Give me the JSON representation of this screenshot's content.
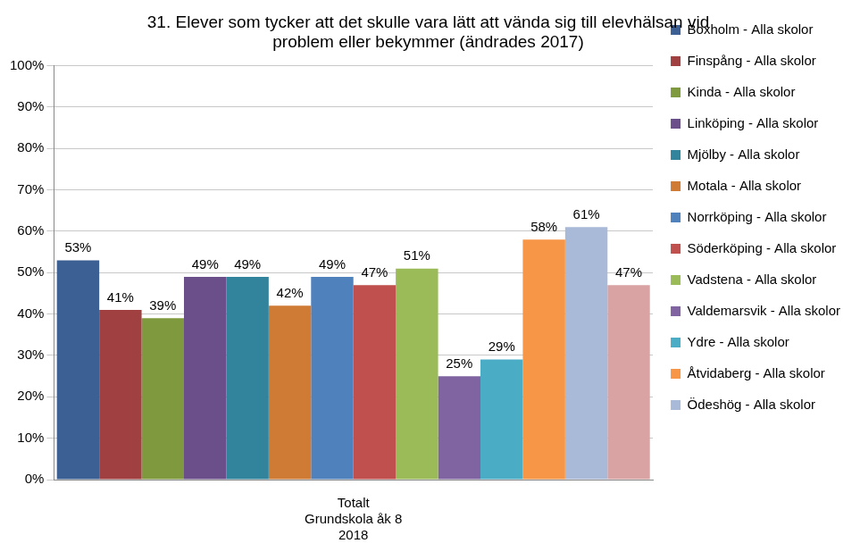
{
  "chart_data": {
    "type": "bar",
    "title": [
      "31. Elever som tycker att det skulle vara lätt att vända sig till elevhälsan vid",
      "problem eller bekymmer (ändrades 2017)"
    ],
    "categories": [
      [
        "Totalt",
        "Grundskola åk 8",
        "2018"
      ]
    ],
    "series": [
      {
        "name": "Boxholm - Alla skolor",
        "color": "#3c5f94",
        "values": [
          53
        ],
        "value_labels": [
          "53%"
        ]
      },
      {
        "name": "Finspång - Alla skolor",
        "color": "#a04040",
        "values": [
          41
        ],
        "value_labels": [
          "41%"
        ]
      },
      {
        "name": "Kinda - Alla skolor",
        "color": "#7f9a3e",
        "values": [
          39
        ],
        "value_labels": [
          "39%"
        ]
      },
      {
        "name": "Linköping - Alla skolor",
        "color": "#6a4f8a",
        "values": [
          49
        ],
        "value_labels": [
          "49%"
        ]
      },
      {
        "name": "Mjölby - Alla skolor",
        "color": "#31849b",
        "values": [
          49
        ],
        "value_labels": [
          "49%"
        ]
      },
      {
        "name": "Motala - Alla skolor",
        "color": "#d07b35",
        "values": [
          42
        ],
        "value_labels": [
          "42%"
        ]
      },
      {
        "name": "Norrköping - Alla skolor",
        "color": "#4f81bd",
        "values": [
          49
        ],
        "value_labels": [
          "49%"
        ]
      },
      {
        "name": "Söderköping - Alla skolor",
        "color": "#c0504d",
        "values": [
          47
        ],
        "value_labels": [
          "47%"
        ]
      },
      {
        "name": "Vadstena - Alla skolor",
        "color": "#9bbb59",
        "values": [
          51
        ],
        "value_labels": [
          "51%"
        ]
      },
      {
        "name": "Valdemarsvik - Alla skolor",
        "color": "#8064a2",
        "values": [
          25
        ],
        "value_labels": [
          "25%"
        ]
      },
      {
        "name": "Ydre - Alla skolor",
        "color": "#4bacc6",
        "values": [
          29
        ],
        "value_labels": [
          "29%"
        ]
      },
      {
        "name": "Åtvidaberg - Alla skolor",
        "color": "#f79646",
        "values": [
          58
        ],
        "value_labels": [
          "58%"
        ]
      },
      {
        "name": "Ödeshög - Alla skolor",
        "color": "#a9bad9",
        "values": [
          61
        ],
        "value_labels": [
          "61%"
        ]
      },
      {
        "name": null,
        "color": "#d9a3a3",
        "values": [
          47
        ],
        "value_labels": [
          "47%"
        ]
      }
    ],
    "ylim": [
      0,
      100
    ],
    "yticks": [
      {
        "value": 0,
        "label": "0%"
      },
      {
        "value": 10,
        "label": "10%"
      },
      {
        "value": 20,
        "label": "20%"
      },
      {
        "value": 30,
        "label": "30%"
      },
      {
        "value": 40,
        "label": "40%"
      },
      {
        "value": 50,
        "label": "50%"
      },
      {
        "value": 60,
        "label": "60%"
      },
      {
        "value": 70,
        "label": "70%"
      },
      {
        "value": 80,
        "label": "80%"
      },
      {
        "value": 90,
        "label": "90%"
      },
      {
        "value": 100,
        "label": "100%"
      }
    ],
    "grid": true,
    "legend": "right",
    "data_labels": true
  }
}
